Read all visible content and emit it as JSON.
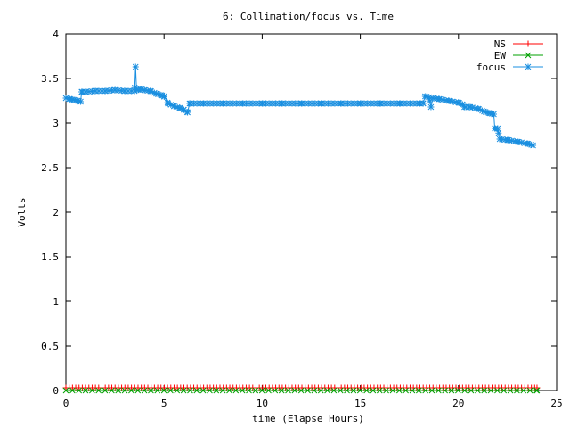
{
  "chart_data": {
    "type": "line",
    "title": "6: Collimation/focus vs. Time",
    "xlabel": "time (Elapse Hours)",
    "ylabel": "Volts",
    "xlim": [
      0,
      25
    ],
    "ylim": [
      0,
      4
    ],
    "x_ticks": [
      0,
      5,
      10,
      15,
      20,
      25
    ],
    "y_ticks": [
      0,
      0.5,
      1,
      1.5,
      2,
      2.5,
      3,
      3.5,
      4
    ],
    "x_tick_labels": [
      "0",
      "5",
      "10",
      "15",
      "20",
      "25"
    ],
    "y_tick_labels": [
      "0",
      "0.5",
      "1",
      "1.5",
      "2",
      "2.5",
      "3",
      "3.5",
      "4"
    ],
    "grid": false,
    "legend_position": "top-right",
    "series": [
      {
        "name": "NS",
        "color": "#ff0000",
        "marker": "plus",
        "points": [
          [
            0,
            0.03
          ],
          [
            24,
            0.03
          ]
        ],
        "marker_interval": 0.167
      },
      {
        "name": "EW",
        "color": "#00a000",
        "marker": "cross",
        "points": [
          [
            0,
            0.0
          ],
          [
            24,
            0.0
          ]
        ],
        "marker_interval": 0.333
      },
      {
        "name": "focus",
        "color": "#1a8fe0",
        "marker": "star",
        "points": [
          [
            0.0,
            3.28
          ],
          [
            0.2,
            3.27
          ],
          [
            0.4,
            3.26
          ],
          [
            0.6,
            3.25
          ],
          [
            0.75,
            3.24
          ],
          [
            0.8,
            3.35
          ],
          [
            1.0,
            3.35
          ],
          [
            1.5,
            3.36
          ],
          [
            2.0,
            3.36
          ],
          [
            2.5,
            3.37
          ],
          [
            3.0,
            3.36
          ],
          [
            3.5,
            3.36
          ],
          [
            3.55,
            3.63
          ],
          [
            3.6,
            3.37
          ],
          [
            3.8,
            3.38
          ],
          [
            4.0,
            3.37
          ],
          [
            4.3,
            3.36
          ],
          [
            4.6,
            3.33
          ],
          [
            4.9,
            3.31
          ],
          [
            5.0,
            3.3
          ],
          [
            5.2,
            3.22
          ],
          [
            5.5,
            3.19
          ],
          [
            5.8,
            3.17
          ],
          [
            6.0,
            3.15
          ],
          [
            6.2,
            3.12
          ],
          [
            6.3,
            3.22
          ],
          [
            7.0,
            3.22
          ],
          [
            8.0,
            3.22
          ],
          [
            9.0,
            3.22
          ],
          [
            10.0,
            3.22
          ],
          [
            11.0,
            3.22
          ],
          [
            12.0,
            3.22
          ],
          [
            13.0,
            3.22
          ],
          [
            14.0,
            3.22
          ],
          [
            15.0,
            3.22
          ],
          [
            16.0,
            3.22
          ],
          [
            17.0,
            3.22
          ],
          [
            18.0,
            3.22
          ],
          [
            18.2,
            3.22
          ],
          [
            18.3,
            3.3
          ],
          [
            18.5,
            3.29
          ],
          [
            18.6,
            3.18
          ],
          [
            18.7,
            3.28
          ],
          [
            19.0,
            3.27
          ],
          [
            19.5,
            3.25
          ],
          [
            20.0,
            3.23
          ],
          [
            20.2,
            3.21
          ],
          [
            20.3,
            3.18
          ],
          [
            20.6,
            3.18
          ],
          [
            21.0,
            3.16
          ],
          [
            21.3,
            3.13
          ],
          [
            21.6,
            3.11
          ],
          [
            21.8,
            3.1
          ],
          [
            21.85,
            2.94
          ],
          [
            22.0,
            2.94
          ],
          [
            22.1,
            2.82
          ],
          [
            22.5,
            2.81
          ],
          [
            23.0,
            2.79
          ],
          [
            23.5,
            2.77
          ],
          [
            23.8,
            2.75
          ]
        ],
        "marker_interval": 0.167
      }
    ]
  }
}
